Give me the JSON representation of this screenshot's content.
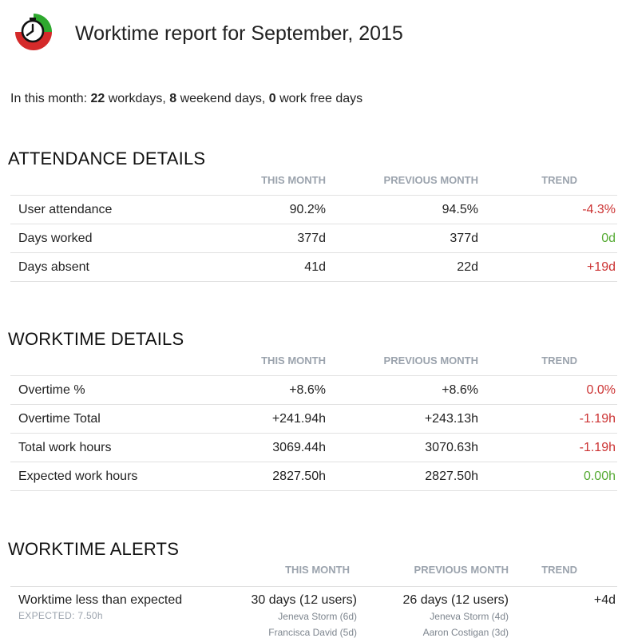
{
  "header": {
    "title": "Worktime report for September, 2015",
    "colors": {
      "clock_green": "#2ea82e",
      "clock_red": "#d42a2a"
    }
  },
  "summary": {
    "prefix": "In this month: ",
    "workdays": "22",
    "workdays_label": " workdays, ",
    "weekend": "8",
    "weekend_label": " weekend days, ",
    "free": "0",
    "free_label": " work free days"
  },
  "columns": {
    "this_month": "THIS MONTH",
    "previous_month": "PREVIOUS MONTH",
    "trend": "TREND"
  },
  "attendance": {
    "title": "ATTENDANCE DETAILS",
    "rows": [
      {
        "label": "User attendance",
        "this": "90.2%",
        "prev": "94.5%",
        "trend": "-4.3%",
        "trend_type": "neg"
      },
      {
        "label": "Days worked",
        "this": "377d",
        "prev": "377d",
        "trend": "0d",
        "trend_type": "zero"
      },
      {
        "label": "Days absent",
        "this": "41d",
        "prev": "22d",
        "trend": "+19d",
        "trend_type": "pos"
      }
    ]
  },
  "worktime": {
    "title": "WORKTIME DETAILS",
    "rows": [
      {
        "label": "Overtime %",
        "this": "+8.6%",
        "prev": "+8.6%",
        "trend": "0.0%",
        "trend_type": "neg"
      },
      {
        "label": "Overtime Total",
        "this": "+241.94h",
        "prev": "+243.13h",
        "trend": "-1.19h",
        "trend_type": "neg"
      },
      {
        "label": "Total work hours",
        "this": "3069.44h",
        "prev": "3070.63h",
        "trend": "-1.19h",
        "trend_type": "neg"
      },
      {
        "label": "Expected work hours",
        "this": "2827.50h",
        "prev": "2827.50h",
        "trend": "0.00h",
        "trend_type": "zero"
      }
    ]
  },
  "alerts": {
    "title": "WORKTIME ALERTS",
    "rows": [
      {
        "label": "Worktime less than expected",
        "sub": "EXPECTED: 7.50h",
        "this": "30 days (12 users)",
        "prev": "26 days (12 users)",
        "trend": "+4d",
        "this_users": [
          "Jeneva Storm (6d)",
          "Francisca David (5d)"
        ],
        "prev_users": [
          "Jeneva Storm (4d)",
          "Aaron Costigan (3d)"
        ]
      }
    ]
  }
}
